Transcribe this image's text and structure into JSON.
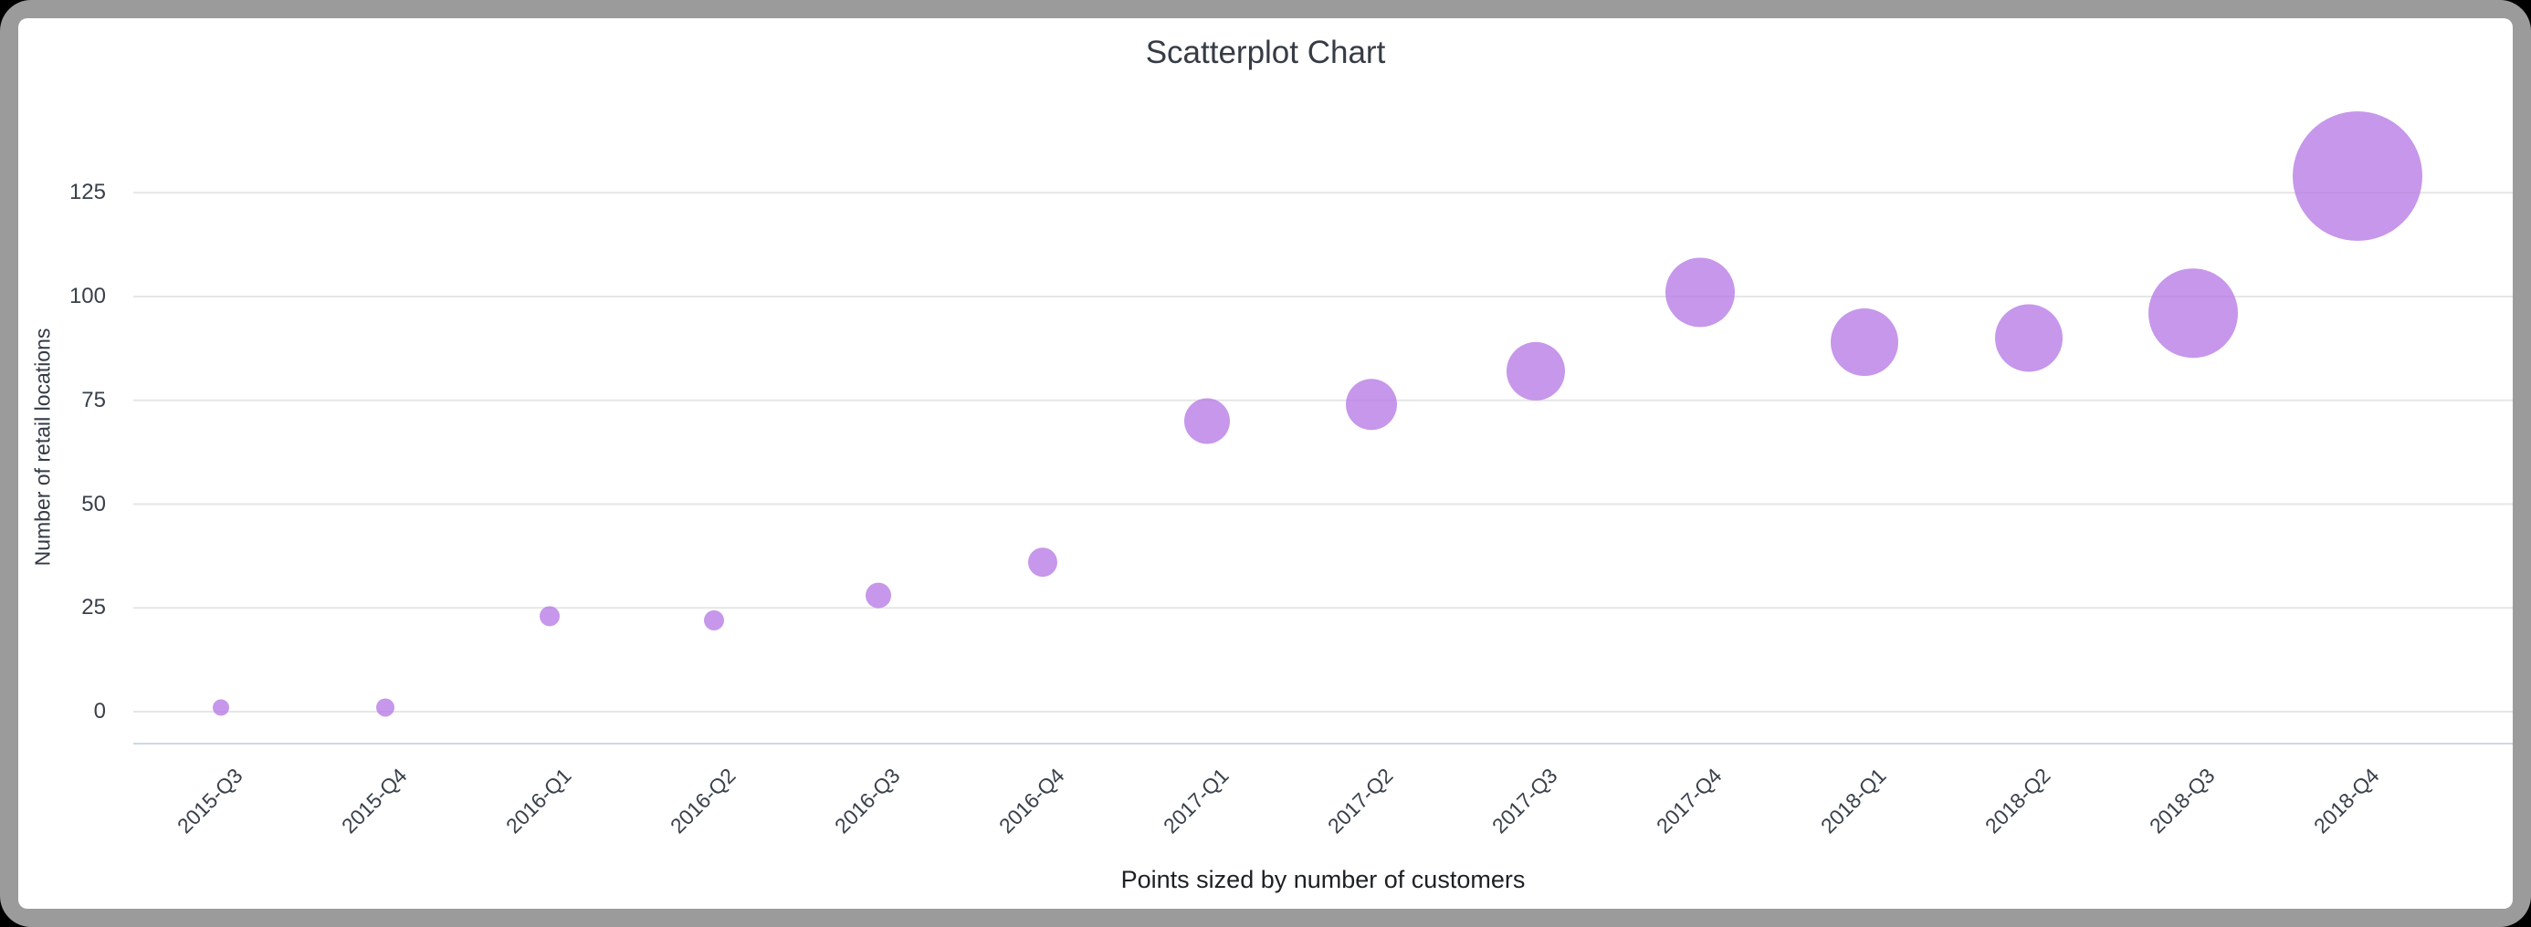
{
  "window": {
    "outer_background": "#000000",
    "frame_border_color": "#9b9b9b",
    "card_background": "#ffffff"
  },
  "chart_data": {
    "type": "scatter",
    "title": "Scatterplot Chart",
    "ylabel": "Number of retail locations",
    "xlabel": "Points sized by number of customers",
    "categories": [
      "2015-Q3",
      "2015-Q4",
      "2016-Q1",
      "2016-Q2",
      "2016-Q3",
      "2016-Q4",
      "2017-Q1",
      "2017-Q2",
      "2017-Q3",
      "2017-Q4",
      "2018-Q1",
      "2018-Q2",
      "2018-Q3",
      "2018-Q4"
    ],
    "series": [
      {
        "name": "Number of retail locations",
        "values": [
          1,
          1,
          23,
          22,
          28,
          36,
          70,
          74,
          82,
          101,
          89,
          90,
          96,
          129
        ],
        "point_radius_px": [
          9,
          10,
          11,
          11,
          14,
          16,
          25,
          28,
          32,
          38,
          37,
          37,
          49,
          71
        ],
        "color": "#b87de5",
        "opacity": 0.8
      }
    ],
    "yticks": [
      0,
      25,
      50,
      75,
      100,
      125
    ],
    "ylim": [
      0,
      135
    ],
    "grid": true,
    "legend": "none",
    "gridline_color": "#e6e6e6",
    "baseline_color": "#cdd6e5",
    "title_color": "#363c45",
    "tick_label_color": "#39404b",
    "axis_title_color": "#333a44",
    "caption_color": "#1d2024"
  }
}
